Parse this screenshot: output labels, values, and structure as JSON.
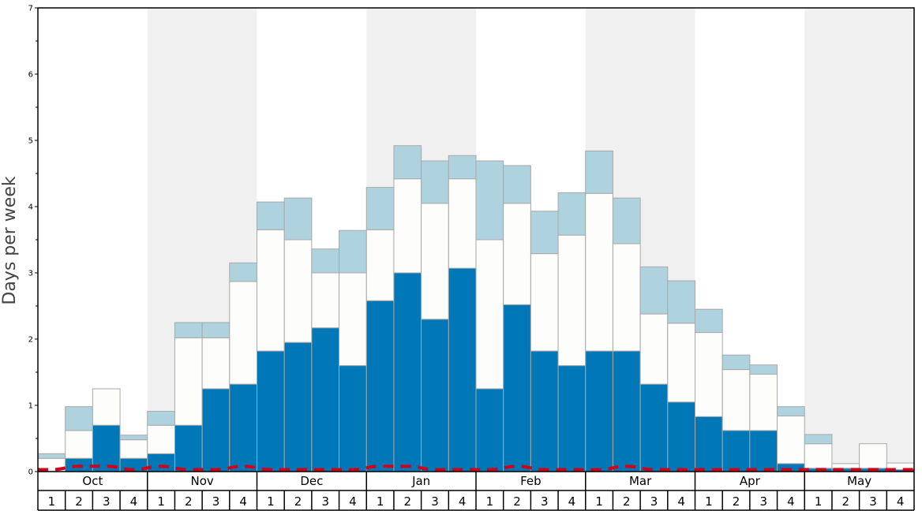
{
  "chart_data": {
    "type": "bar",
    "stacked": true,
    "ylabel": "Days per week",
    "ylim": [
      0,
      7
    ],
    "yticks": [
      0,
      1,
      2,
      3,
      4,
      5,
      6,
      7
    ],
    "months": [
      "Oct",
      "Nov",
      "Dec",
      "Jan",
      "Feb",
      "Mar",
      "Apr",
      "May"
    ],
    "weeks": [
      "1",
      "2",
      "3",
      "4"
    ],
    "shaded_months": [
      "Nov",
      "Jan",
      "Mar",
      "May"
    ],
    "colors": {
      "bottom": "#0077b6",
      "middle": "#fdfdfb",
      "top": "#aed3df",
      "line": "#d0021b",
      "shade": "#f0f0f0",
      "bar_border": "#a8a8a8"
    },
    "series": [
      {
        "key": "bottom",
        "values": [
          0.0,
          0.2,
          0.7,
          0.2,
          0.27,
          0.7,
          1.25,
          1.32,
          1.82,
          1.95,
          2.17,
          1.6,
          2.58,
          3.0,
          2.3,
          3.07,
          1.25,
          2.52,
          1.82,
          1.6,
          1.82,
          1.82,
          1.32,
          1.05,
          0.83,
          0.62,
          0.62,
          0.12,
          0.05,
          0.05,
          0.05,
          0.03
        ]
      },
      {
        "key": "middle",
        "values": [
          0.2,
          0.42,
          0.55,
          0.28,
          0.43,
          1.32,
          0.77,
          1.55,
          1.83,
          1.55,
          0.83,
          1.4,
          1.07,
          1.42,
          1.75,
          1.35,
          2.25,
          1.53,
          1.47,
          1.97,
          2.38,
          1.62,
          1.06,
          1.19,
          1.27,
          0.92,
          0.85,
          0.72,
          0.37,
          0.07,
          0.37,
          0.1
        ]
      },
      {
        "key": "top",
        "values": [
          0.07,
          0.36,
          0.0,
          0.07,
          0.21,
          0.23,
          0.23,
          0.28,
          0.42,
          0.63,
          0.36,
          0.64,
          0.64,
          0.5,
          0.64,
          0.35,
          1.19,
          0.57,
          0.64,
          0.64,
          0.64,
          0.69,
          0.71,
          0.64,
          0.35,
          0.22,
          0.14,
          0.14,
          0.14,
          0.0,
          0.0,
          0.0
        ]
      }
    ],
    "line": [
      0.03,
      0.08,
      0.08,
      0.03,
      0.08,
      0.03,
      0.03,
      0.08,
      0.03,
      0.03,
      0.03,
      0.03,
      0.08,
      0.08,
      0.03,
      0.03,
      0.03,
      0.08,
      0.03,
      0.03,
      0.03,
      0.08,
      0.03,
      0.03,
      0.03,
      0.03,
      0.03,
      0.03,
      0.03,
      0.03,
      0.03,
      0.03
    ]
  }
}
